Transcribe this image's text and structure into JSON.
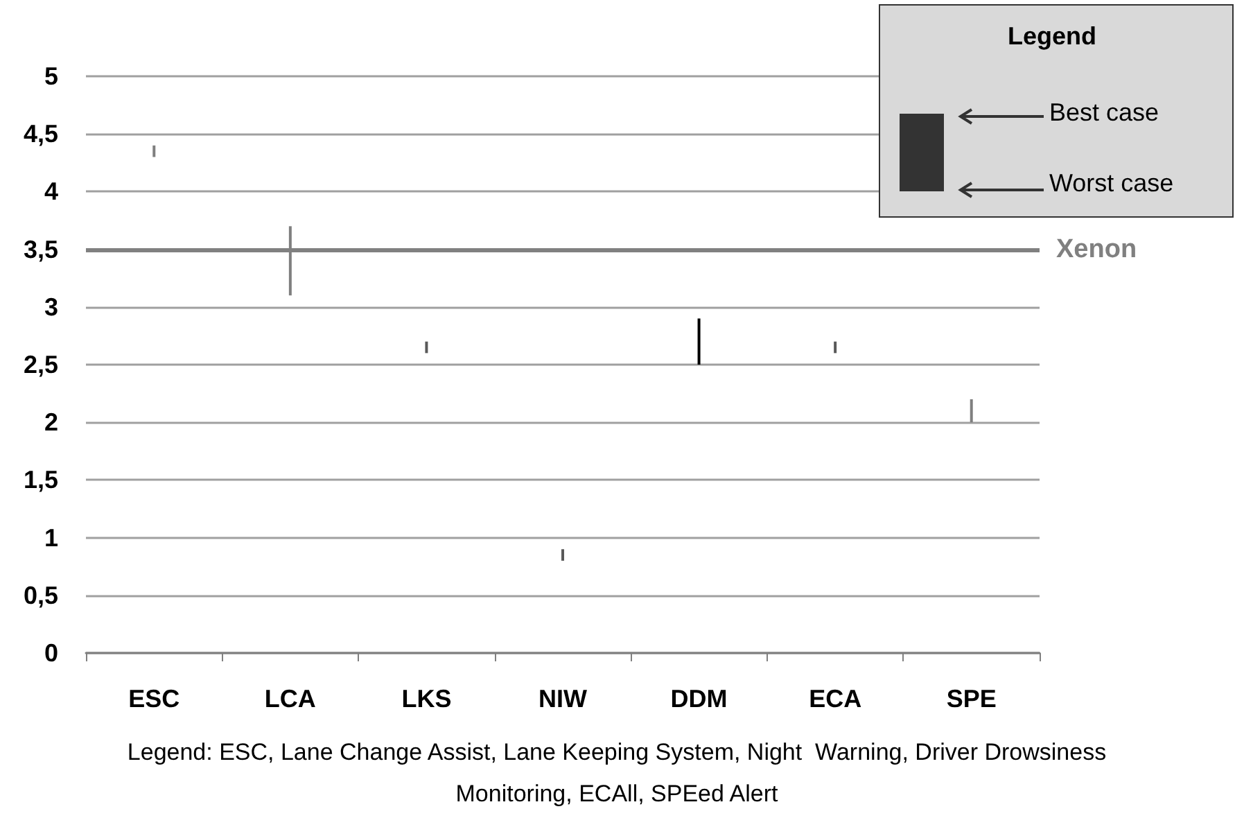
{
  "chart_data": {
    "type": "bar",
    "categories": [
      "ESC",
      "LCA",
      "LKS",
      "NIW",
      "DDM",
      "ECA",
      "SPE"
    ],
    "base": [
      4.3,
      3.1,
      2.6,
      0.8,
      2.5,
      2.6,
      2.0
    ],
    "values": [
      0.1,
      0.6,
      0.1,
      0.1,
      0.4,
      0.1,
      0.2
    ],
    "colors": [
      "#7f7f7f",
      "#7f7f7f",
      "#595959",
      "#595959",
      "#000000",
      "#595959",
      "#7f7f7f"
    ],
    "ylim": [
      0,
      5
    ],
    "yticks": [
      0,
      {
        "value": 0.5,
        "label": "0,5"
      },
      1,
      {
        "value": 1.5,
        "label": "1,5"
      },
      2,
      {
        "value": 2.5,
        "label": "2,5"
      },
      3,
      {
        "value": 3.5,
        "label": "3,5"
      },
      4,
      {
        "value": 4.5,
        "label": "4,5"
      },
      5
    ],
    "grid": "y",
    "ref_lines": [
      {
        "axis": "y",
        "value": 3.5,
        "label": "Xenon",
        "color": "#808080"
      }
    ],
    "annotations": [
      "Legend",
      "Best case",
      "Worst case",
      "Legend: ESC, Lane Change Assist, Lane Keeping System, Night  Warning, Driver Drowsiness Monitoring, ECAll, SPEed Alert"
    ]
  }
}
